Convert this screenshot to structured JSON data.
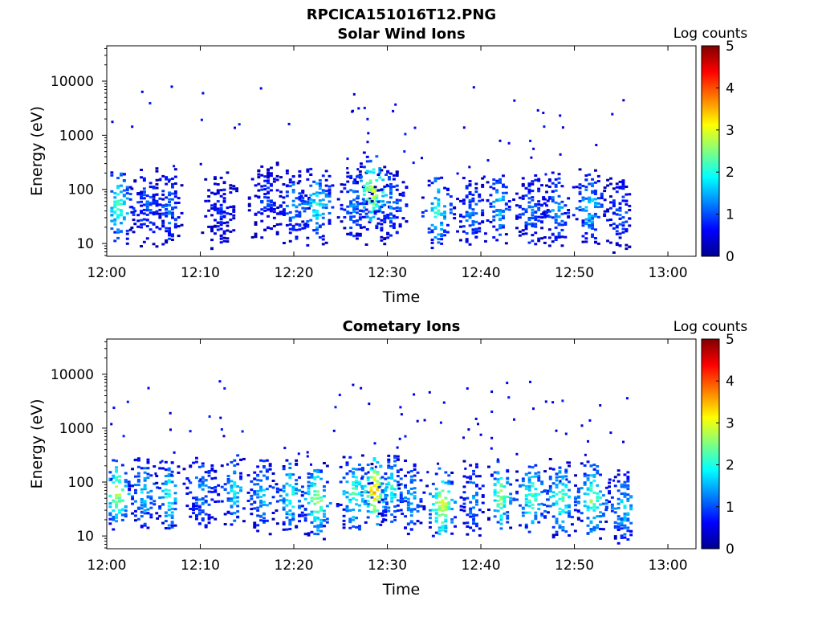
{
  "figure_title": "RPCICA151016T12.PNG",
  "colorscale": [
    "#00008f",
    "#0000ff",
    "#0080ff",
    "#00ffff",
    "#80ff80",
    "#ffff00",
    "#ff8000",
    "#ff0000",
    "#800000"
  ],
  "chart_data": [
    {
      "type": "heatmap",
      "title": "Solar Wind Ions",
      "xlabel": "Time",
      "ylabel": "Energy (eV)",
      "x_ticks": [
        "12:00",
        "12:10",
        "12:20",
        "12:30",
        "12:40",
        "12:50",
        "13:00"
      ],
      "x_range_minutes": [
        0,
        63
      ],
      "y_scale": "log",
      "y_ticks": [
        10,
        100,
        1000,
        10000
      ],
      "y_tick_labels": [
        "10",
        "100",
        "1000",
        "10000"
      ],
      "y_range": [
        5.8,
        45000
      ],
      "colorbar": {
        "label": "Log counts",
        "range": [
          0,
          5
        ],
        "ticks": [
          "0",
          "1",
          "2",
          "3",
          "4",
          "5"
        ]
      },
      "bursts": [
        {
          "t": 1.1,
          "e": 50,
          "peak": 2.3
        },
        {
          "t": 4.2,
          "e": 45,
          "peak": 1.2
        },
        {
          "t": 6.5,
          "e": 45,
          "peak": 1.3
        },
        {
          "t": 12.0,
          "e": 40,
          "peak": 0.8
        },
        {
          "t": 17.0,
          "e": 60,
          "peak": 0.9
        },
        {
          "t": 19.8,
          "e": 50,
          "peak": 1.4
        },
        {
          "t": 22.3,
          "e": 50,
          "peak": 2.0
        },
        {
          "t": 26.3,
          "e": 50,
          "peak": 1.4
        },
        {
          "t": 28.3,
          "e": 90,
          "peak": 3.0
        },
        {
          "t": 30.2,
          "e": 50,
          "peak": 1.3
        },
        {
          "t": 35.2,
          "e": 40,
          "peak": 2.2
        },
        {
          "t": 38.8,
          "e": 35,
          "peak": 1.4
        },
        {
          "t": 41.8,
          "e": 50,
          "peak": 1.8
        },
        {
          "t": 45.3,
          "e": 40,
          "peak": 1.3
        },
        {
          "t": 48.0,
          "e": 45,
          "peak": 1.6
        },
        {
          "t": 51.5,
          "e": 50,
          "peak": 1.8
        },
        {
          "t": 54.8,
          "e": 35,
          "peak": 1.1
        }
      ],
      "scatter_density": 0.35
    },
    {
      "type": "heatmap",
      "title": "Cometary Ions",
      "xlabel": "Time",
      "ylabel": "Energy (eV)",
      "x_ticks": [
        "12:00",
        "12:10",
        "12:20",
        "12:30",
        "12:40",
        "12:50",
        "13:00"
      ],
      "x_range_minutes": [
        0,
        63
      ],
      "y_scale": "log",
      "y_ticks": [
        10,
        100,
        1000,
        10000
      ],
      "y_tick_labels": [
        "10",
        "100",
        "1000",
        "10000"
      ],
      "y_range": [
        5.8,
        45000
      ],
      "colorbar": {
        "label": "Log counts",
        "range": [
          0,
          5
        ],
        "ticks": [
          "0",
          "1",
          "2",
          "3",
          "4",
          "5"
        ]
      },
      "bursts": [
        {
          "t": 1.0,
          "e": 60,
          "peak": 3.0
        },
        {
          "t": 3.8,
          "e": 60,
          "peak": 1.8
        },
        {
          "t": 6.5,
          "e": 55,
          "peak": 2.2
        },
        {
          "t": 10.0,
          "e": 70,
          "peak": 1.5
        },
        {
          "t": 13.5,
          "e": 70,
          "peak": 2.0
        },
        {
          "t": 16.5,
          "e": 60,
          "peak": 1.8
        },
        {
          "t": 19.5,
          "e": 55,
          "peak": 2.2
        },
        {
          "t": 22.3,
          "e": 45,
          "peak": 2.8
        },
        {
          "t": 26.4,
          "e": 60,
          "peak": 2.4
        },
        {
          "t": 28.5,
          "e": 70,
          "peak": 3.8
        },
        {
          "t": 30.3,
          "e": 70,
          "peak": 2.2
        },
        {
          "t": 32.5,
          "e": 50,
          "peak": 1.6
        },
        {
          "t": 35.7,
          "e": 40,
          "peak": 3.2
        },
        {
          "t": 39.0,
          "e": 50,
          "peak": 1.5
        },
        {
          "t": 42.0,
          "e": 55,
          "peak": 2.8
        },
        {
          "t": 45.3,
          "e": 50,
          "peak": 2.4
        },
        {
          "t": 48.5,
          "e": 50,
          "peak": 2.4
        },
        {
          "t": 51.8,
          "e": 50,
          "peak": 2.6
        },
        {
          "t": 55.2,
          "e": 35,
          "peak": 1.8
        }
      ],
      "scatter_density": 0.55
    }
  ]
}
